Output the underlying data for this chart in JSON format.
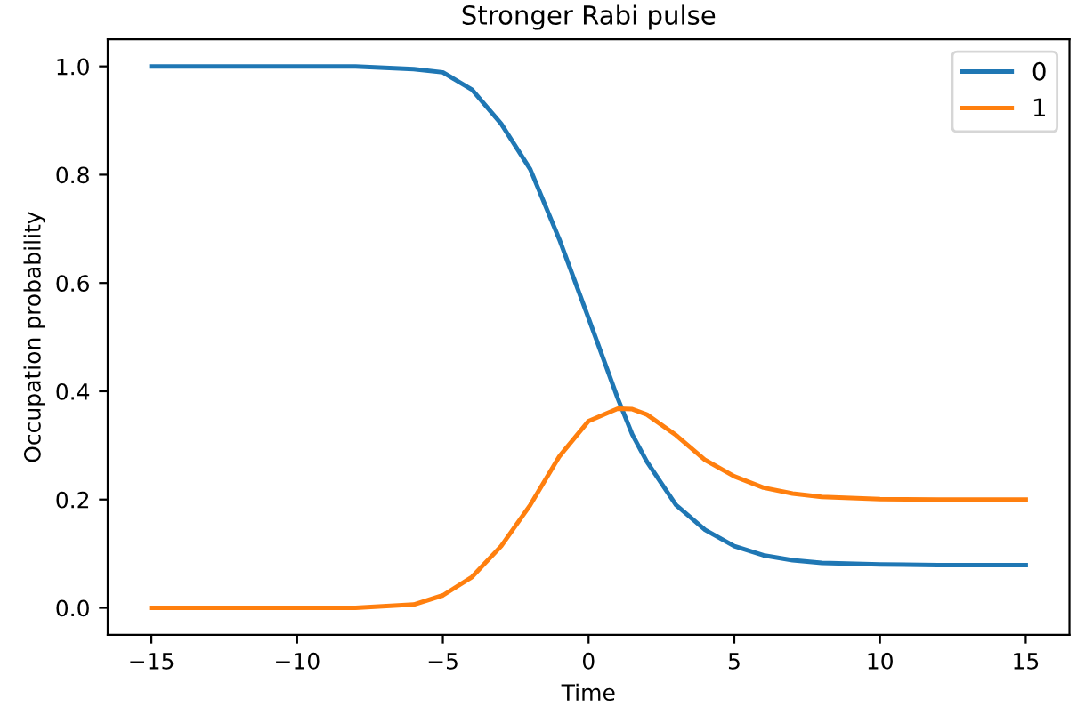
{
  "chart_data": {
    "type": "line",
    "title": "Stronger Rabi pulse",
    "xlabel": "Time",
    "ylabel": "Occupation probability",
    "x": [
      -15,
      -10,
      -8,
      -6,
      -5,
      -4,
      -3,
      -2,
      -1,
      0,
      1,
      1.5,
      2,
      3,
      4,
      5,
      6,
      7,
      8,
      10,
      12,
      15
    ],
    "series": [
      {
        "name": "0",
        "color": "#1f77b4",
        "values": [
          1.0,
          1.0,
          1.0,
          0.995,
          0.989,
          0.957,
          0.894,
          0.81,
          0.68,
          0.535,
          0.387,
          0.32,
          0.27,
          0.19,
          0.144,
          0.114,
          0.097,
          0.088,
          0.083,
          0.08,
          0.079,
          0.079
        ]
      },
      {
        "name": "1",
        "color": "#ff7f0e",
        "values": [
          0.0,
          0.0,
          0.0,
          0.006,
          0.023,
          0.057,
          0.114,
          0.19,
          0.28,
          0.345,
          0.368,
          0.367,
          0.357,
          0.319,
          0.273,
          0.243,
          0.222,
          0.211,
          0.205,
          0.201,
          0.2,
          0.2
        ]
      }
    ],
    "xlim": [
      -16.5,
      16.5
    ],
    "xticks": [
      {
        "value": -15,
        "label": "−15"
      },
      {
        "value": -10,
        "label": "−10"
      },
      {
        "value": -5,
        "label": "−5"
      },
      0,
      5,
      10,
      15
    ],
    "ylim": [
      -0.05,
      1.05
    ],
    "yticks": [
      {
        "value": 0,
        "label": "0.0"
      },
      0.2,
      0.4,
      0.6,
      0.8,
      {
        "value": 1,
        "label": "1.0"
      }
    ],
    "legend": "top right",
    "grid": false,
    "marker": "none",
    "line_style": "solid"
  }
}
